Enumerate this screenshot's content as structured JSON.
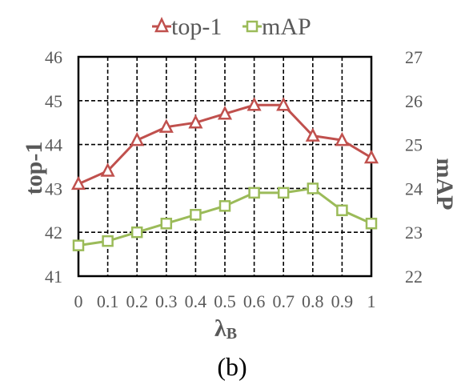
{
  "chart_data": {
    "type": "line",
    "x": [
      "0",
      "0.1",
      "0.2",
      "0.3",
      "0.4",
      "0.5",
      "0.6",
      "0.7",
      "0.8",
      "0.9",
      "1"
    ],
    "xlabel_main": "λ",
    "xlabel_sub": "B",
    "ylabel_left": "top-1",
    "ylabel_right": "mAP",
    "ylim_left": [
      41,
      46
    ],
    "ylim_right": [
      22,
      27
    ],
    "yticks_left": [
      "41",
      "42",
      "43",
      "44",
      "45",
      "46"
    ],
    "yticks_right": [
      "22",
      "23",
      "24",
      "25",
      "26",
      "27"
    ],
    "grid": true,
    "legend_position": "top",
    "series": [
      {
        "name": "top-1",
        "axis": "left",
        "marker": "triangle",
        "color": "#c0504d",
        "values": [
          43.1,
          43.4,
          44.1,
          44.4,
          44.5,
          44.7,
          44.9,
          44.9,
          44.2,
          44.1,
          43.7
        ]
      },
      {
        "name": "mAP",
        "axis": "right",
        "marker": "square",
        "color": "#9bbb59",
        "values": [
          22.7,
          22.8,
          23.0,
          23.2,
          23.4,
          23.6,
          23.9,
          23.9,
          24.0,
          23.5,
          23.2
        ]
      }
    ]
  },
  "caption": "(b)"
}
